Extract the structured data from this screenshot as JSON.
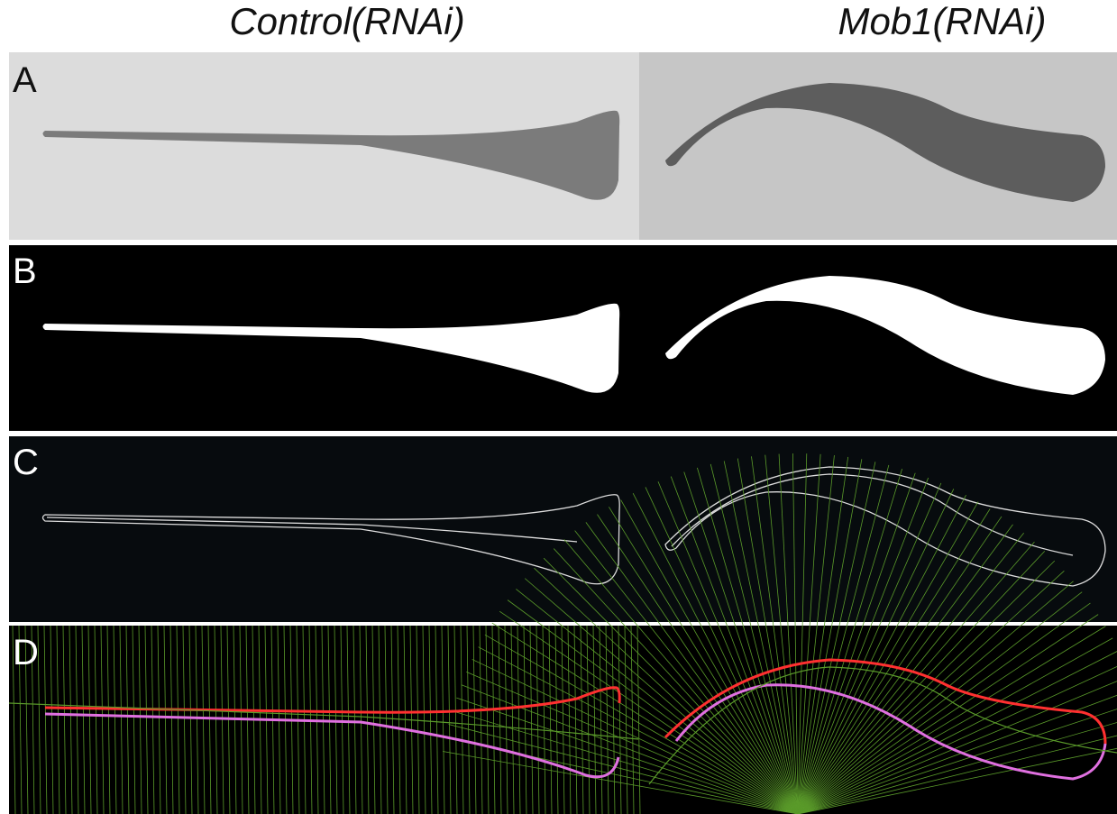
{
  "columns": [
    "Control(RNAi)",
    "Mob1(RNAi)"
  ],
  "panels": [
    "A",
    "B",
    "C",
    "D"
  ]
}
